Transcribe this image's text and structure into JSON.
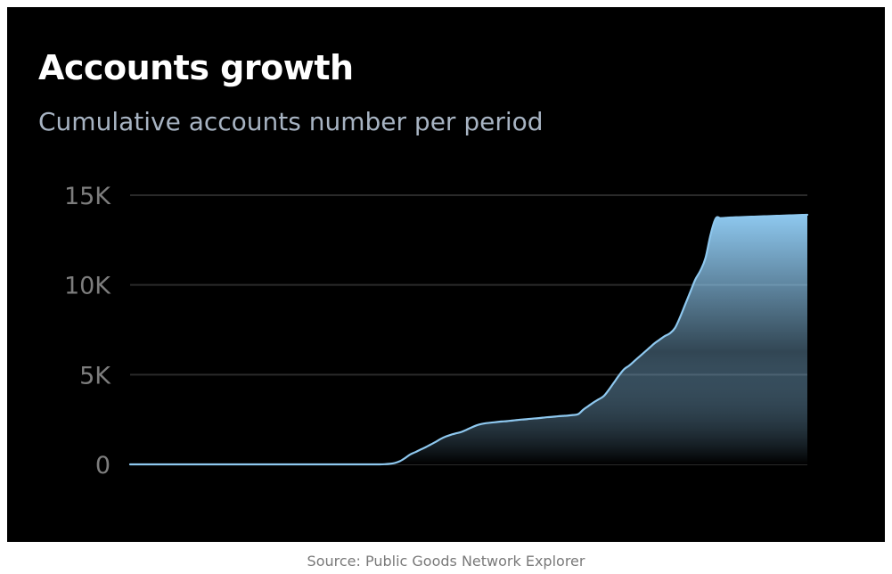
{
  "card": {
    "title": "Accounts growth",
    "subtitle": "Cumulative accounts number per period",
    "source": "Source: Public Goods Network Explorer"
  },
  "chart_data": {
    "type": "area",
    "title": "Accounts growth",
    "subtitle": "Cumulative accounts number per period",
    "xlabel": "",
    "ylabel": "",
    "ylim": [
      0,
      15000
    ],
    "yticks": [
      0,
      5000,
      10000,
      15000
    ],
    "ytick_labels": [
      "0",
      "5K",
      "10K",
      "15K"
    ],
    "grid": true,
    "legend": "none",
    "colors": {
      "line": "#8ec8ef",
      "fill_top": "#8ec8ef",
      "fill_bottom": "#000000",
      "grid": "#2a2a2a",
      "background": "#000000"
    },
    "series": [
      {
        "values": [
          0,
          0,
          0,
          0,
          0,
          0,
          0,
          0,
          0,
          0,
          0,
          0,
          0,
          0,
          0,
          0,
          0,
          0,
          0,
          0,
          0,
          0,
          0,
          0,
          0,
          0,
          0,
          0,
          0,
          0,
          0,
          0,
          0,
          0,
          0,
          0,
          0,
          0,
          0,
          0,
          0,
          0,
          0,
          0,
          0,
          0,
          0,
          0,
          0,
          0,
          10,
          30,
          80,
          180,
          350,
          550,
          680,
          820,
          950,
          1100,
          1250,
          1420,
          1550,
          1650,
          1730,
          1800,
          1920,
          2050,
          2170,
          2250,
          2300,
          2330,
          2360,
          2390,
          2410,
          2440,
          2470,
          2500,
          2520,
          2550,
          2570,
          2600,
          2630,
          2650,
          2680,
          2700,
          2720,
          2750,
          2800,
          3050,
          3250,
          3450,
          3620,
          3800,
          4150,
          4550,
          4950,
          5300,
          5500,
          5750,
          6000,
          6250,
          6500,
          6750,
          6950,
          7150,
          7300,
          7600,
          8200,
          8900,
          9600,
          10300,
          10800,
          11500,
          12800,
          13700,
          13720,
          13740,
          13760,
          13770,
          13780,
          13790,
          13800,
          13810,
          13820,
          13830,
          13840,
          13850,
          13860,
          13870,
          13880,
          13890,
          13900,
          13910
        ]
      }
    ]
  }
}
